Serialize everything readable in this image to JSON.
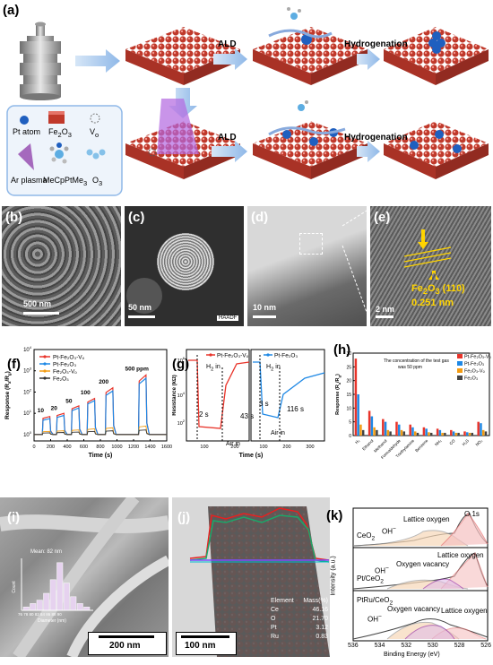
{
  "panel_a": {
    "label": "(a)",
    "arrow_top_1": "ALD",
    "arrow_top_2": "Hydrogenation",
    "arrow_bot_1": "ALD",
    "arrow_bot_2": "Hydrogenation",
    "legend": {
      "pt_atom": "Pt atom",
      "fe2o3": "Fe",
      "fe2o3_sub": "2",
      "fe2o3_end": "O",
      "fe2o3_sub2": "3",
      "vo": "V",
      "vo_sub": "o",
      "ar_plasma": "Ar plasma",
      "mecp": "MeCpPtMe",
      "mecp_sub": "3",
      "o3": "O",
      "o3_sub": "3"
    }
  },
  "panel_b": {
    "label": "(b)",
    "scale": "500 nm"
  },
  "panel_c": {
    "label": "(c)",
    "scale": "50 nm",
    "badge": "HAADF"
  },
  "panel_d": {
    "label": "(d)",
    "scale": "10 nm"
  },
  "panel_e": {
    "label": "(e)",
    "lattice_1": "Fe",
    "lattice_1_sub": "2",
    "lattice_1_mid": "O",
    "lattice_1_sub2": "3",
    "lattice_1_end": " (110)",
    "lattice_2": "0.251 nm",
    "scale": "2 nm"
  },
  "panel_f": {
    "label": "(f)"
  },
  "panel_g": {
    "label": "(g)",
    "h2_in_1": "H",
    "h2_in_1_sub": "2",
    "h2_in_1_end": " in",
    "air_in_1": "Air in",
    "t1": "43 s",
    "t2": "2 s",
    "h2_in_2": "H",
    "h2_in_2_sub": "2",
    "h2_in_2_end": " in",
    "air_in_2": "Air in",
    "t3": "3 s",
    "t4": "116 s"
  },
  "panel_h": {
    "label": "(h)"
  },
  "panel_i": {
    "label": "(i)",
    "scale": "200 nm",
    "mean": "Mean: 82 nm",
    "hist_xlabel": "Diameter (nm)",
    "hist_ylabel": "Count",
    "hist_ticks": "76 78 80 82 84 86 88 90"
  },
  "panel_j": {
    "label": "(j)",
    "scale": "100 nm",
    "table_header": [
      "Element",
      "Mass(%)"
    ],
    "table_rows": [
      {
        "el": "Ce",
        "val": "46.16"
      },
      {
        "el": "O",
        "val": "21.70"
      },
      {
        "el": "Pt",
        "val": "3.12"
      },
      {
        "el": "Ru",
        "val": "0.83"
      }
    ]
  },
  "panel_k": {
    "label": "(k)",
    "o1s": "O 1s",
    "s1": "CeO",
    "s1_sub": "2",
    "s2": "Pt/CeO",
    "s2_sub": "2",
    "s3": "PtRu/CeO",
    "s3_sub": "2",
    "lattice_oxygen": "Lattice oxygen",
    "oh": "OH",
    "oh_sup": "−",
    "oxygen_vacancy": "Oxygen vacancy",
    "ylabel": "Intensity (a.u.)",
    "xlabel": "Binding Energy (eV)",
    "xticks": [
      "536",
      "534",
      "532",
      "530",
      "528",
      "526"
    ]
  },
  "chart_data": [
    {
      "type": "line",
      "panel": "(f)",
      "ylabel": "Response (R",
      "ylabel_sub": "a",
      "ylabel_mid": "/R",
      "ylabel_sub2": "g",
      "ylabel_end": ")",
      "xlabel": "Time (s)",
      "xticks": [
        "0",
        "200",
        "400",
        "600",
        "800",
        "1000",
        "1200",
        "1400",
        "1600"
      ],
      "yticks": [
        "10",
        "10",
        "10",
        "10",
        "10"
      ],
      "ytick_exp": [
        "0",
        "1",
        "2",
        "3",
        "4"
      ],
      "ylog": true,
      "xlim": [
        0,
        1600
      ],
      "ylim_log10": [
        -0.3,
        4
      ],
      "annotations": [
        "10",
        "20",
        "50",
        "100",
        "200",
        "500 ppm"
      ],
      "annotation_x": [
        80,
        240,
        420,
        620,
        840,
        1240
      ],
      "annotation_logy": [
        1.05,
        1.15,
        1.5,
        1.9,
        2.4,
        3.0
      ],
      "legend": [
        "Pt-Fe₂O₃-Vₒ",
        "Pt-Fe₂O₃",
        "Fe₂O₃-Vₒ",
        "Fe₂O₃"
      ],
      "series_colors": [
        "#e8342a",
        "#1e88e5",
        "#f39c12",
        "#333333"
      ],
      "pulses": [
        {
          "start": 100,
          "end": 190,
          "peak_log": [
            0.85,
            0.75,
            0.15,
            0.08
          ]
        },
        {
          "start": 270,
          "end": 360,
          "peak_log": [
            1.0,
            0.9,
            0.18,
            0.1
          ]
        },
        {
          "start": 450,
          "end": 540,
          "peak_log": [
            1.35,
            1.25,
            0.22,
            0.12
          ]
        },
        {
          "start": 640,
          "end": 730,
          "peak_log": [
            1.7,
            1.6,
            0.27,
            0.15
          ]
        },
        {
          "start": 860,
          "end": 950,
          "peak_log": [
            2.2,
            2.05,
            0.32,
            0.18
          ]
        },
        {
          "start": 1260,
          "end": 1350,
          "peak_log": [
            2.8,
            2.65,
            0.4,
            0.22
          ]
        }
      ]
    },
    {
      "type": "line",
      "panel": "(g)",
      "ylabel": "Resistance (kΩ)",
      "xlabel": "Time (s)",
      "yticks": [
        "10",
        "10",
        "10"
      ],
      "ytick_exp": [
        "2",
        "4",
        "6"
      ],
      "xticks_left": [
        "100",
        "200"
      ],
      "xticks_right": [
        "100",
        "200",
        "300"
      ],
      "legend": [
        "Pt-Fe₂O₃-Vₒ",
        "Pt-Fe₂O₃"
      ],
      "series_colors": [
        "#e8342a",
        "#1e88e5"
      ]
    },
    {
      "type": "bar",
      "panel": "(h)",
      "title": "The concentration of the test gas was 50 ppm",
      "ylabel": "Response (R",
      "ylabel_sub": "a",
      "ylabel_mid": "/R",
      "ylabel_sub2": "g",
      "ylabel_end": ")",
      "yticks": [
        "0",
        "5",
        "10",
        "15",
        "20",
        "25",
        "30"
      ],
      "ylim": [
        0,
        30
      ],
      "categories": [
        "H₂",
        "Ethanol",
        "Methanol",
        "Formaldehyde",
        "Triethylamine",
        "Benzene",
        "NH₃",
        "CO",
        "H₂S",
        "NO₂"
      ],
      "series": [
        {
          "name": "Pt-Fe₂O₃-Vₒ",
          "color": "#e8342a",
          "values": [
            28,
            9,
            6,
            5,
            4,
            3,
            2.5,
            2,
            1.5,
            5
          ]
        },
        {
          "name": "Pt-Fe₂O₃",
          "color": "#1e88e5",
          "values": [
            15,
            7,
            5,
            4,
            3,
            2.5,
            2,
            1.5,
            1.2,
            4.5
          ]
        },
        {
          "name": "Fe₂O₃-Vₒ",
          "color": "#f39c12",
          "values": [
            4,
            3,
            2,
            2,
            1.5,
            1.2,
            1,
            1,
            1,
            2
          ]
        },
        {
          "name": "Fe₂O₃",
          "color": "#444444",
          "values": [
            2,
            2,
            1.5,
            1.5,
            1,
            1,
            1,
            1,
            1,
            1.5
          ]
        }
      ]
    }
  ]
}
